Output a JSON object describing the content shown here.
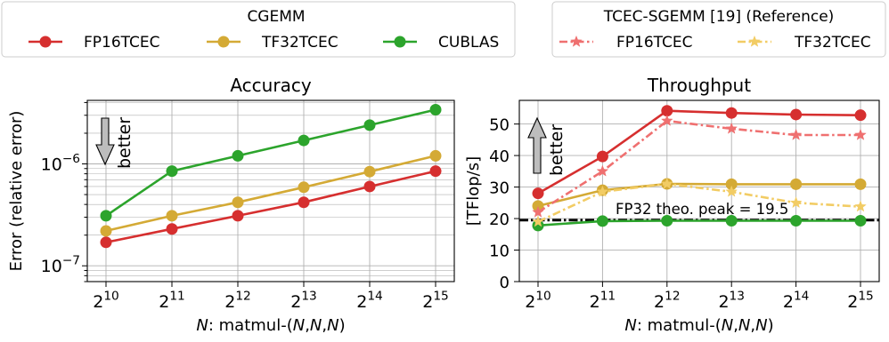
{
  "legends": [
    {
      "title": "CGEMM",
      "entries": [
        {
          "label": "FP16TCEC",
          "color": "#d62f2f",
          "marker": "circle",
          "dash": "solid"
        },
        {
          "label": "TF32TCEC",
          "color": "#d4aa35",
          "marker": "circle",
          "dash": "solid"
        },
        {
          "label": "CUBLAS",
          "color": "#2ca42c",
          "marker": "circle",
          "dash": "solid"
        }
      ]
    },
    {
      "title": "TCEC-SGEMM [19] (Reference)",
      "entries": [
        {
          "label": "FP16TCEC",
          "color": "#ef7070",
          "marker": "star",
          "dash": "dashdot"
        },
        {
          "label": "TF32TCEC",
          "color": "#f2cc64",
          "marker": "star",
          "dash": "dashdot"
        }
      ]
    }
  ],
  "chart_data": [
    {
      "type": "line",
      "title": "Accuracy",
      "xlabel": "N: matmul-(N,N,N)",
      "ylabel": "Error (relative error)",
      "yscale": "log",
      "ylim": [
        7e-08,
        4.2e-06
      ],
      "x": [
        10,
        11,
        12,
        13,
        14,
        15
      ],
      "x_tick_labels": [
        "2^10",
        "2^11",
        "2^12",
        "2^13",
        "2^14",
        "2^15"
      ],
      "y_ticks": [
        1e-07,
        1e-06
      ],
      "y_tick_labels": [
        "10^-7",
        "10^-6"
      ],
      "grid": true,
      "annotation": {
        "text": "better",
        "direction": "down"
      },
      "series": [
        {
          "name": "FP16TCEC",
          "color": "#d62f2f",
          "marker": "circle",
          "dash": "solid",
          "values": [
            1.7e-07,
            2.3e-07,
            3.1e-07,
            4.2e-07,
            6e-07,
            8.5e-07
          ]
        },
        {
          "name": "TF32TCEC",
          "color": "#d4aa35",
          "marker": "circle",
          "dash": "solid",
          "values": [
            2.2e-07,
            3.1e-07,
            4.2e-07,
            5.9e-07,
            8.4e-07,
            1.2e-06
          ]
        },
        {
          "name": "CUBLAS",
          "color": "#2ca42c",
          "marker": "circle",
          "dash": "solid",
          "values": [
            3.1e-07,
            8.5e-07,
            1.2e-06,
            1.7e-06,
            2.4e-06,
            3.4e-06
          ]
        }
      ]
    },
    {
      "type": "line",
      "title": "Throughput",
      "xlabel": "N: matmul-(N,N,N)",
      "ylabel": "[TFlop/s]",
      "ylim": [
        0,
        57.5
      ],
      "x": [
        10,
        11,
        12,
        13,
        14,
        15
      ],
      "x_tick_labels": [
        "2^10",
        "2^11",
        "2^12",
        "2^13",
        "2^14",
        "2^15"
      ],
      "y_ticks": [
        0,
        10,
        20,
        30,
        40,
        50
      ],
      "grid": true,
      "annotation": {
        "text": "better",
        "direction": "up"
      },
      "reference_line": {
        "y": 19.5,
        "label": "FP32 theo. peak = 19.5"
      },
      "series": [
        {
          "name": "FP16TCEC",
          "group": "CGEMM",
          "color": "#d62f2f",
          "marker": "circle",
          "dash": "solid",
          "values": [
            28,
            39.7,
            54.2,
            53.5,
            53,
            52.8
          ]
        },
        {
          "name": "TF32TCEC",
          "group": "CGEMM",
          "color": "#d4aa35",
          "marker": "circle",
          "dash": "solid",
          "values": [
            24,
            29,
            31,
            30.9,
            30.9,
            30.9
          ]
        },
        {
          "name": "CUBLAS",
          "group": "CGEMM",
          "color": "#2ca42c",
          "marker": "circle",
          "dash": "solid",
          "values": [
            17.8,
            19.2,
            19.3,
            19.3,
            19.3,
            19.3
          ]
        },
        {
          "name": "FP16TCEC",
          "group": "TCEC-SGEMM [19] (Reference)",
          "color": "#ef7070",
          "marker": "star",
          "dash": "dashdot",
          "values": [
            22,
            35,
            51,
            48.5,
            46.5,
            46.5
          ]
        },
        {
          "name": "TF32TCEC",
          "group": "TCEC-SGEMM [19] (Reference)",
          "color": "#f2cc64",
          "marker": "star",
          "dash": "dashdot",
          "values": [
            19,
            28.5,
            31,
            28.5,
            25,
            23.8
          ]
        }
      ]
    }
  ]
}
